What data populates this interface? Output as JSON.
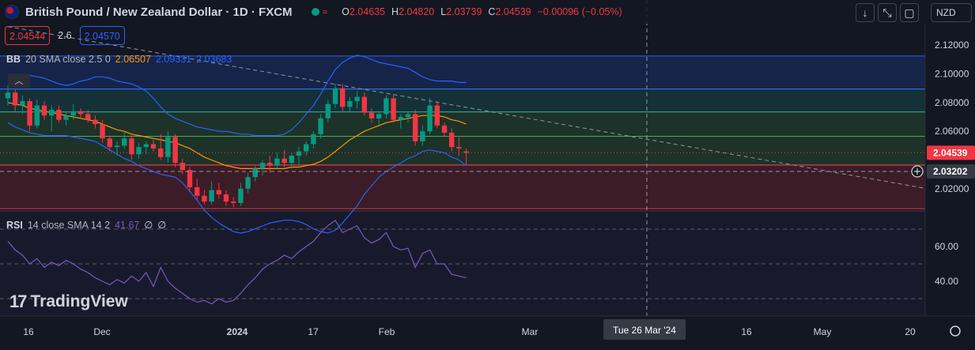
{
  "header": {
    "title": "British Pound / New Zealand Dollar · 1D · FXCM",
    "wave_icon": "≈",
    "ohlc": [
      {
        "k": "O",
        "v": "2.04635"
      },
      {
        "k": "H",
        "v": "2.04820"
      },
      {
        "k": "L",
        "v": "2.03739"
      },
      {
        "k": "C",
        "v": "2.04539"
      },
      {
        "k": "",
        "v": "−0.00096 (−0.05%)"
      }
    ],
    "currency": "NZD",
    "icons": [
      "arrow-down-icon",
      "collapse-icon",
      "maximize-icon"
    ]
  },
  "trade": {
    "sell": "2.04544",
    "spread": "2.6",
    "buy": "2.04570"
  },
  "bb": {
    "name": "BB",
    "params": "20 SMA close 2.5 0",
    "values": [
      "2.06507",
      "2.09331",
      "2.03683"
    ],
    "colors": [
      "#ff9800",
      "#2962ff",
      "#2962ff"
    ]
  },
  "rsi": {
    "name": "RSI",
    "params": "14 close SMA 14 2",
    "values": [
      "41.67",
      "∅",
      "∅"
    ],
    "colors": [
      "#7e57c2",
      "#d1d4dc",
      "#d1d4dc"
    ]
  },
  "watermark": {
    "logo": "17",
    "text": "TradingView"
  },
  "chart_data": {
    "type": "candlestick",
    "symbol": "GBPNZD",
    "timeframe": "1D",
    "price_axis": {
      "min": 2.005,
      "max": 2.135,
      "ticks": [
        2.12,
        2.1,
        2.08,
        2.06,
        2.02
      ]
    },
    "price_tick_labels": [
      "2.12000",
      "2.10000",
      "2.08000",
      "2.06000",
      "2.02000"
    ],
    "rsi_axis": {
      "min": 20,
      "max": 80,
      "ticks": [
        60,
        40
      ],
      "tick_labels": [
        "60.00",
        "40.00"
      ],
      "band_upper": 70,
      "band_mid": 50,
      "band_lower": 30
    },
    "time_labels": [
      "16",
      "Dec",
      "2024",
      "17",
      "Feb",
      "Mar",
      "16",
      "May",
      "20"
    ],
    "crosshair_time_label": "Tue 26 Mar '24",
    "last_price_label": "2.04539",
    "crosshair_price_label": "2.03202",
    "crosshair_price": 2.03202,
    "zones": [
      {
        "from": 2.0365,
        "to": 2.0565,
        "color": "#4caf50"
      },
      {
        "from": 2.0565,
        "to": 2.0735,
        "color": "#4caf50"
      },
      {
        "from": 2.0735,
        "to": 2.0895,
        "color": "#26a69a"
      },
      {
        "from": 2.0895,
        "to": 2.1125,
        "color": "#2962ff"
      },
      {
        "from": 2.006,
        "to": 2.0365,
        "color": "#f23645"
      }
    ],
    "trendline": {
      "from": [
        0,
        2.133
      ],
      "to": [
        142,
        2.006
      ]
    },
    "candles": [
      [
        2.083,
        2.092,
        2.078,
        2.087
      ],
      [
        2.087,
        2.089,
        2.074,
        2.078
      ],
      [
        2.078,
        2.085,
        2.072,
        2.081
      ],
      [
        2.081,
        2.083,
        2.06,
        2.064
      ],
      [
        2.064,
        2.082,
        2.062,
        2.078
      ],
      [
        2.078,
        2.081,
        2.068,
        2.071
      ],
      [
        2.071,
        2.078,
        2.06,
        2.075
      ],
      [
        2.075,
        2.078,
        2.066,
        2.068
      ],
      [
        2.068,
        2.074,
        2.064,
        2.071
      ],
      [
        2.071,
        2.079,
        2.068,
        2.074
      ],
      [
        2.074,
        2.076,
        2.069,
        2.072
      ],
      [
        2.072,
        2.075,
        2.066,
        2.068
      ],
      [
        2.068,
        2.071,
        2.062,
        2.065
      ],
      [
        2.065,
        2.068,
        2.052,
        2.055
      ],
      [
        2.055,
        2.057,
        2.046,
        2.049
      ],
      [
        2.049,
        2.053,
        2.043,
        2.05
      ],
      [
        2.05,
        2.059,
        2.048,
        2.055
      ],
      [
        2.055,
        2.057,
        2.04,
        2.044
      ],
      [
        2.044,
        2.052,
        2.041,
        2.049
      ],
      [
        2.049,
        2.053,
        2.044,
        2.051
      ],
      [
        2.051,
        2.054,
        2.046,
        2.048
      ],
      [
        2.048,
        2.058,
        2.04,
        2.042
      ],
      [
        2.042,
        2.06,
        2.038,
        2.056
      ],
      [
        2.056,
        2.058,
        2.035,
        2.038
      ],
      [
        2.038,
        2.041,
        2.03,
        2.033
      ],
      [
        2.033,
        2.035,
        2.018,
        2.021
      ],
      [
        2.021,
        2.027,
        2.012,
        2.015
      ],
      [
        2.015,
        2.019,
        2.009,
        2.011
      ],
      [
        2.011,
        2.025,
        2.009,
        2.019
      ],
      [
        2.019,
        2.024,
        2.013,
        2.016
      ],
      [
        2.016,
        2.019,
        2.008,
        2.011
      ],
      [
        2.011,
        2.014,
        2.007,
        2.01
      ],
      [
        2.01,
        2.024,
        2.008,
        2.02
      ],
      [
        2.02,
        2.031,
        2.017,
        2.028
      ],
      [
        2.028,
        2.036,
        2.025,
        2.034
      ],
      [
        2.034,
        2.04,
        2.029,
        2.038
      ],
      [
        2.038,
        2.043,
        2.031,
        2.036
      ],
      [
        2.036,
        2.045,
        2.034,
        2.041
      ],
      [
        2.041,
        2.047,
        2.035,
        2.038
      ],
      [
        2.038,
        2.045,
        2.034,
        2.043
      ],
      [
        2.043,
        2.049,
        2.036,
        2.046
      ],
      [
        2.046,
        2.053,
        2.043,
        2.051
      ],
      [
        2.051,
        2.06,
        2.048,
        2.058
      ],
      [
        2.058,
        2.072,
        2.055,
        2.069
      ],
      [
        2.069,
        2.082,
        2.066,
        2.079
      ],
      [
        2.079,
        2.093,
        2.076,
        2.09
      ],
      [
        2.09,
        2.093,
        2.074,
        2.077
      ],
      [
        2.077,
        2.084,
        2.074,
        2.081
      ],
      [
        2.081,
        2.088,
        2.076,
        2.084
      ],
      [
        2.084,
        2.087,
        2.071,
        2.073
      ],
      [
        2.073,
        2.076,
        2.066,
        2.069
      ],
      [
        2.069,
        2.074,
        2.064,
        2.072
      ],
      [
        2.072,
        2.085,
        2.069,
        2.083
      ],
      [
        2.083,
        2.086,
        2.066,
        2.068
      ],
      [
        2.068,
        2.072,
        2.062,
        2.07
      ],
      [
        2.07,
        2.074,
        2.066,
        2.072
      ],
      [
        2.072,
        2.075,
        2.05,
        2.053
      ],
      [
        2.053,
        2.064,
        2.05,
        2.06
      ],
      [
        2.06,
        2.083,
        2.058,
        2.078
      ],
      [
        2.078,
        2.081,
        2.062,
        2.064
      ],
      [
        2.064,
        2.066,
        2.056,
        2.059
      ],
      [
        2.059,
        2.062,
        2.046,
        2.049
      ],
      [
        2.049,
        2.056,
        2.043,
        2.048
      ],
      [
        2.046,
        2.048,
        2.037,
        2.045
      ]
    ],
    "bb_mid": [
      2.08,
      2.079,
      2.078,
      2.076,
      2.075,
      2.074,
      2.073,
      2.072,
      2.071,
      2.07,
      2.069,
      2.068,
      2.067,
      2.065,
      2.063,
      2.061,
      2.06,
      2.058,
      2.057,
      2.056,
      2.055,
      2.054,
      2.053,
      2.052,
      2.05,
      2.048,
      2.045,
      2.042,
      2.04,
      2.038,
      2.036,
      2.035,
      2.034,
      2.034,
      2.034,
      2.034,
      2.034,
      2.034,
      2.034,
      2.035,
      2.035,
      2.036,
      2.037,
      2.039,
      2.042,
      2.046,
      2.05,
      2.054,
      2.057,
      2.06,
      2.062,
      2.064,
      2.066,
      2.067,
      2.068,
      2.069,
      2.07,
      2.071,
      2.071,
      2.071,
      2.07,
      2.068,
      2.067,
      2.065
    ],
    "bb_upper": [
      2.094,
      2.097,
      2.099,
      2.099,
      2.098,
      2.097,
      2.095,
      2.093,
      2.092,
      2.093,
      2.095,
      2.096,
      2.098,
      2.098,
      2.097,
      2.095,
      2.094,
      2.093,
      2.091,
      2.088,
      2.083,
      2.077,
      2.072,
      2.069,
      2.067,
      2.065,
      2.063,
      2.062,
      2.061,
      2.06,
      2.06,
      2.059,
      2.058,
      2.058,
      2.057,
      2.057,
      2.057,
      2.057,
      2.058,
      2.061,
      2.066,
      2.072,
      2.078,
      2.086,
      2.095,
      2.103,
      2.108,
      2.111,
      2.113,
      2.112,
      2.11,
      2.108,
      2.107,
      2.106,
      2.105,
      2.104,
      2.101,
      2.098,
      2.096,
      2.095,
      2.095,
      2.095,
      2.094,
      2.094
    ],
    "bb_lower": [
      2.066,
      2.063,
      2.061,
      2.059,
      2.058,
      2.057,
      2.057,
      2.057,
      2.057,
      2.056,
      2.055,
      2.054,
      2.053,
      2.05,
      2.047,
      2.044,
      2.041,
      2.039,
      2.036,
      2.034,
      2.032,
      2.03,
      2.029,
      2.028,
      2.024,
      2.018,
      2.012,
      2.005,
      2.0,
      1.996,
      1.993,
      1.99,
      1.989,
      1.99,
      1.992,
      1.994,
      1.996,
      1.997,
      1.998,
      1.998,
      1.997,
      1.995,
      1.992,
      1.99,
      1.989,
      1.991,
      1.996,
      2.002,
      2.008,
      2.016,
      2.022,
      2.028,
      2.032,
      2.035,
      2.038,
      2.041,
      2.043,
      2.046,
      2.047,
      2.046,
      2.045,
      2.042,
      2.04,
      2.036
    ],
    "rsi": [
      63,
      58,
      55,
      50,
      53,
      48,
      51,
      49,
      52,
      50,
      47,
      45,
      42,
      40,
      38,
      41,
      39,
      43,
      40,
      45,
      37,
      48,
      40,
      36,
      33,
      30,
      28,
      29,
      27,
      30,
      28,
      29,
      33,
      38,
      42,
      47,
      50,
      52,
      55,
      53,
      57,
      60,
      63,
      68,
      72,
      75,
      68,
      70,
      72,
      65,
      62,
      64,
      68,
      60,
      58,
      59,
      48,
      56,
      58,
      50,
      50,
      44,
      43,
      42
    ]
  }
}
